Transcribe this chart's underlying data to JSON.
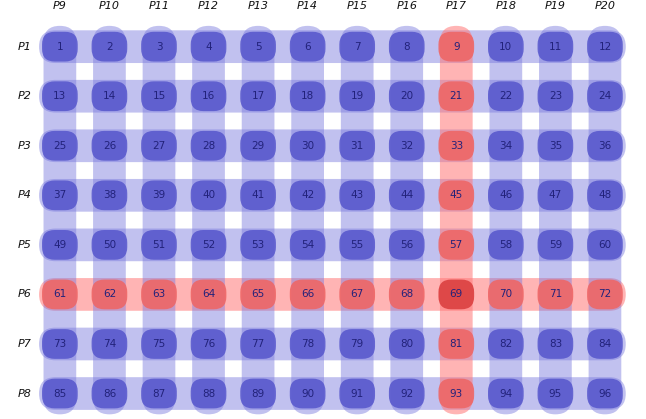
{
  "rows": 8,
  "cols": 12,
  "row_labels": [
    "P1",
    "P2",
    "P3",
    "P4",
    "P5",
    "P6",
    "P7",
    "P8"
  ],
  "col_labels": [
    "P9",
    "P10",
    "P11",
    "P12",
    "P13",
    "P14",
    "P15",
    "P16",
    "P17",
    "P18",
    "P19",
    "P20"
  ],
  "highlight_row": 5,
  "highlight_col": 8,
  "blue_band": "#7777dd",
  "blue_band_alpha": 0.45,
  "red_band": "#ff7777",
  "red_band_alpha": 0.55,
  "blue_cell": "#5555cc",
  "blue_cell_alpha": 0.85,
  "red_cell": "#ee6666",
  "red_cell_alpha": 0.9,
  "cross_cell": "#dd4444",
  "cross_cell_alpha": 0.95,
  "text_color": "#22227a",
  "label_color": "#111111",
  "bg_color": "#ffffff"
}
